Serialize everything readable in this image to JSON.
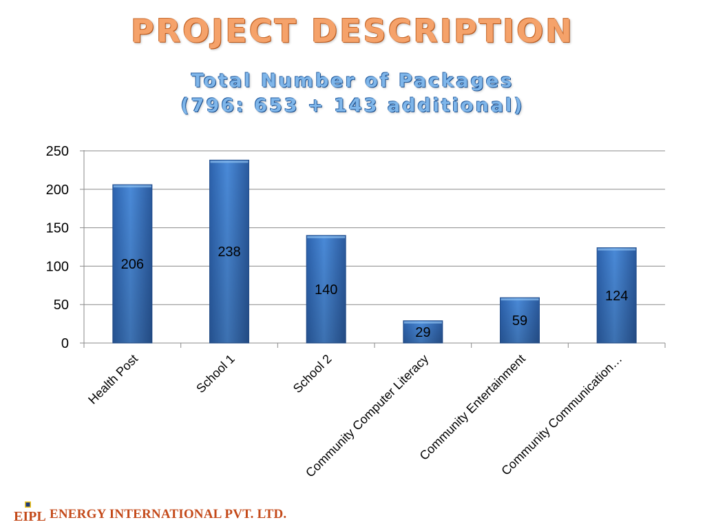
{
  "slide": {
    "title": "PROJECT DESCRIPTION",
    "subtitle_line1": "Total Number of Packages",
    "subtitle_line2": "(796: 653 + 143 additional)"
  },
  "footer": {
    "logo_text": "EIPL",
    "company": "ENERGY INTERNATIONAL PVT. LTD."
  },
  "colors": {
    "bar": "#3c78c8",
    "bar_dark": "#2a5a9e",
    "title": "#f5a26a",
    "subtitle": "#7fb6ea",
    "company": "#c44a1a"
  },
  "chart_data": {
    "type": "bar",
    "categories": [
      "Health Post",
      "School 1",
      "School 2",
      "Community Computer Literacy",
      "Community Entertainment",
      "Community Communication…"
    ],
    "values": [
      206,
      238,
      140,
      29,
      59,
      124
    ],
    "data_labels": [
      "206",
      "238",
      "140",
      "29",
      "59",
      "124"
    ],
    "yticks": [
      "0",
      "50",
      "100",
      "150",
      "200",
      "250"
    ],
    "ylim": [
      0,
      250
    ],
    "title": "",
    "xlabel": "",
    "ylabel": "",
    "grid": true,
    "legend": false
  }
}
